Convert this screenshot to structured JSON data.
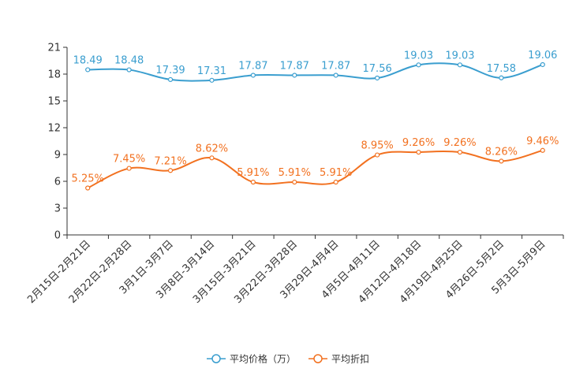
{
  "chart_data": {
    "type": "line",
    "title": "",
    "xlabel": "",
    "ylabel": "",
    "ylim": [
      0,
      21
    ],
    "yticks": [
      0,
      3,
      6,
      9,
      12,
      15,
      18,
      21
    ],
    "grid": false,
    "legend_position": "bottom",
    "categories": [
      "2月15日-2月21日",
      "2月22日-2月28日",
      "3月1日-3月7日",
      "3月8日-3月14日",
      "3月15日-3月21日",
      "3月22日-3月28日",
      "3月29日-4月4日",
      "4月5日-4月11日",
      "4月12日-4月18日",
      "4月19日-4月25日",
      "4月26日-5月2日",
      "5月3日-5月9日"
    ],
    "series": [
      {
        "name": "平均价格（万）",
        "color": "#3a9ecf",
        "values": [
          18.49,
          18.48,
          17.39,
          17.31,
          17.87,
          17.87,
          17.87,
          17.56,
          19.03,
          19.03,
          17.58,
          19.06
        ],
        "labels": [
          "18.49",
          "18.48",
          "17.39",
          "17.31",
          "17.87",
          "17.87",
          "17.87",
          "17.56",
          "19.03",
          "19.03",
          "17.58",
          "19.06"
        ]
      },
      {
        "name": "平均折扣",
        "color": "#f27120",
        "values": [
          5.25,
          7.45,
          7.21,
          8.62,
          5.91,
          5.91,
          5.91,
          8.95,
          9.26,
          9.26,
          8.26,
          9.46
        ],
        "labels": [
          "5.25%",
          "7.45%",
          "7.21%",
          "8.62%",
          "5.91%",
          "5.91%",
          "5.91%",
          "8.95%",
          "9.26%",
          "9.26%",
          "8.26%",
          "9.46%"
        ]
      }
    ]
  }
}
